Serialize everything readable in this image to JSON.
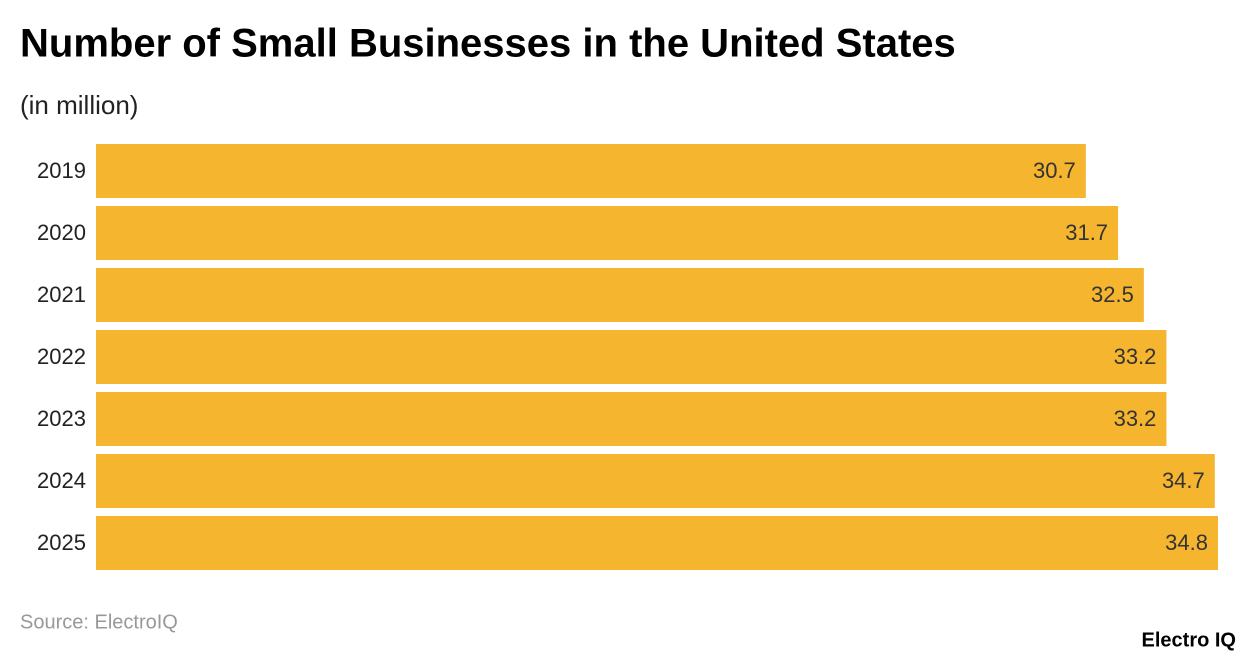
{
  "chart_data": {
    "type": "hbar",
    "title": "Number of Small Businesses in the United States",
    "subtitle": "(in million)",
    "categories": [
      "2019",
      "2020",
      "2021",
      "2022",
      "2023",
      "2024",
      "2025"
    ],
    "values": [
      30.7,
      31.7,
      32.5,
      33.2,
      33.2,
      34.7,
      34.8
    ],
    "color": "#f5b52e",
    "xlim": [
      0,
      34.8
    ],
    "source": "Source: ElectroIQ",
    "brand": "Electro IQ"
  }
}
